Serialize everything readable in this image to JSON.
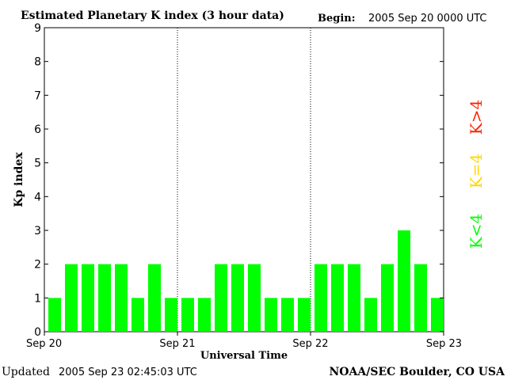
{
  "chart_data": {
    "type": "bar",
    "title": "Estimated Planetary K index (3 hour data)",
    "begin_label": "Begin:",
    "begin_value": "2005 Sep 20 0000 UTC",
    "xlabel": "Universal Time",
    "ylabel": "Kp index",
    "ylim": [
      0,
      9
    ],
    "yticks": [
      "0",
      "1",
      "2",
      "3",
      "4",
      "5",
      "6",
      "7",
      "8",
      "9"
    ],
    "xticks": [
      "Sep 20",
      "Sep 21",
      "Sep 22",
      "Sep 23"
    ],
    "values": [
      1,
      2,
      2,
      2,
      2,
      1,
      2,
      1,
      1,
      1,
      2,
      2,
      2,
      1,
      1,
      1,
      2,
      2,
      2,
      1,
      2,
      3,
      2,
      1
    ],
    "day_separators": true,
    "legend": [
      {
        "label": "K<4",
        "color": "#00ff00"
      },
      {
        "label": "K=4",
        "color": "#ffd700"
      },
      {
        "label": "K>4",
        "color": "#ff2000"
      }
    ],
    "bar_color": "#00ff00"
  },
  "footer": {
    "updated_label": "Updated",
    "updated_value": "2005 Sep 23 02:45:03 UTC",
    "source": "NOAA/SEC Boulder, CO USA"
  }
}
